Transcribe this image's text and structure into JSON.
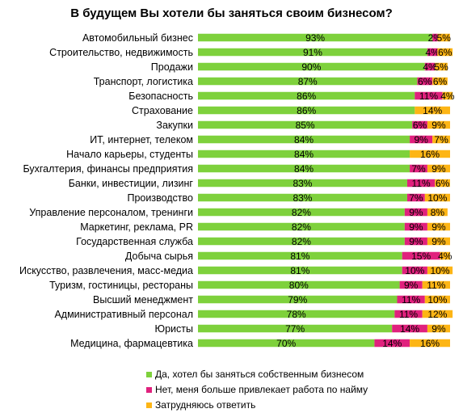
{
  "chart_data": {
    "type": "bar",
    "orientation": "horizontal",
    "stacked": true,
    "title": "В будущем Вы хотели бы заняться своим бизнесом?",
    "xlim": [
      0,
      100
    ],
    "grid": false,
    "legend_position": "bottom",
    "categories": [
      "Автомобильный бизнес",
      "Строительство, недвижимость",
      "Продажи",
      "Транспорт, логистика",
      "Безопасность",
      "Страхование",
      "Закупки",
      "ИТ, интернет, телеком",
      "Начало карьеры, студенты",
      "Бухгалтерия, финансы предприятия",
      "Банки, инвестиции, лизинг",
      "Производство",
      "Управление персоналом, тренинги",
      "Маркетинг, реклама, PR",
      "Государственная служба",
      "Добыча сырья",
      "Искусство, развлечения, масс-медиа",
      "Туризм, гостиницы, рестораны",
      "Высший менеджмент",
      "Административный персонал",
      "Юристы",
      "Медицина, фармацевтика"
    ],
    "series": [
      {
        "name": "Да, хотел бы заняться собственным бизнесом",
        "color": "#7ed13c",
        "values": [
          93,
          91,
          90,
          87,
          86,
          86,
          85,
          84,
          84,
          84,
          83,
          83,
          82,
          82,
          82,
          81,
          81,
          80,
          79,
          78,
          77,
          70
        ],
        "labels": [
          "93%",
          "91%",
          "90%",
          "87%",
          "86%",
          "86%",
          "85%",
          "84%",
          "84%",
          "84%",
          "83%",
          "83%",
          "82%",
          "82%",
          "82%",
          "81%",
          "81%",
          "80%",
          "79%",
          "78%",
          "77%",
          "70%"
        ]
      },
      {
        "name": "Нет, меня больше привлекает работа по найму",
        "color": "#e0217d",
        "values": [
          2,
          4,
          4,
          6,
          11,
          0,
          6,
          9,
          0,
          7,
          11,
          7,
          9,
          9,
          9,
          15,
          10,
          9,
          11,
          11,
          14,
          14
        ],
        "labels": [
          "2%",
          "4%",
          "4%",
          "6%",
          "11%",
          "",
          "6%",
          "9%",
          "",
          "7%",
          "11%",
          "7%",
          "9%",
          "9%",
          "9%",
          "15%",
          "10%",
          "9%",
          "11%",
          "11%",
          "14%",
          "14%"
        ]
      },
      {
        "name": "Затрудняюсь ответить",
        "color": "#fdb515",
        "values": [
          5,
          6,
          5,
          6,
          4,
          14,
          9,
          7,
          16,
          9,
          6,
          10,
          8,
          9,
          9,
          4,
          10,
          11,
          10,
          12,
          9,
          16
        ],
        "labels": [
          "5%",
          "6%",
          "5%",
          "6%",
          "4%",
          "14%",
          "9%",
          "7%",
          "16%",
          "9%",
          "6%",
          "10%",
          "8%",
          "9%",
          "9%",
          "4%",
          "10%",
          "11%",
          "10%",
          "12%",
          "9%",
          "16%"
        ]
      }
    ]
  }
}
